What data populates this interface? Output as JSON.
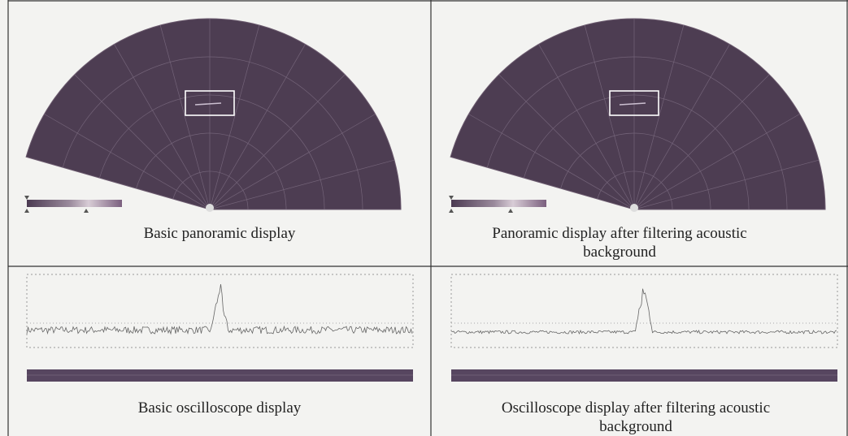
{
  "panels": [
    {
      "caption": "Basic panoramic display"
    },
    {
      "caption": "Panoramic display after filtering acoustic background"
    },
    {
      "caption": "Basic oscilloscope display"
    },
    {
      "caption": "Oscilloscope display after filtering acoustic background"
    }
  ]
}
